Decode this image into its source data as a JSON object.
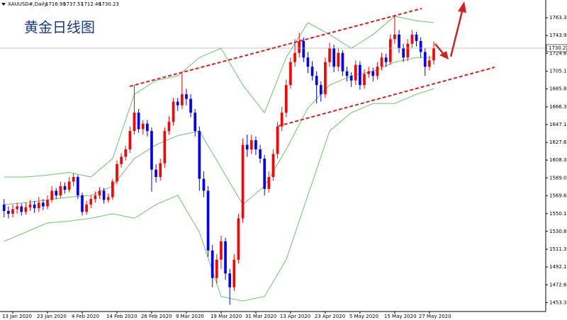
{
  "chart_data": {
    "type": "candlestick",
    "title": "黄金日线图",
    "symbol": "XAUUSD#,Daily",
    "header_ohlc": [
      "1716.90",
      "1737.51",
      "1712.46",
      "1730.23"
    ],
    "up_color": "#ff0000",
    "down_color": "#0000ff",
    "band_color": "#6cc46c",
    "xlim": [
      -0.94,
      124.8
    ],
    "ylim": [
      1443.6,
      1782.6
    ],
    "xticks": [
      {
        "value": 2,
        "label": "13 Jan 2020"
      },
      {
        "value": 10,
        "label": "23 Jan 2020"
      },
      {
        "value": 18,
        "label": "4 Feb 2020"
      },
      {
        "value": 26,
        "label": "14 Feb 2020"
      },
      {
        "value": 34,
        "label": "26 Feb 2020"
      },
      {
        "value": 42,
        "label": "9 Mar 2020"
      },
      {
        "value": 50,
        "label": "19 Mar 2020"
      },
      {
        "value": 58,
        "label": "31 Mar 2020"
      },
      {
        "value": 66,
        "label": "13 Apr 2020"
      },
      {
        "value": 74,
        "label": "23 Apr 2020"
      },
      {
        "value": 82,
        "label": "5 May 2020"
      },
      {
        "value": 90,
        "label": "15 May 2020"
      },
      {
        "value": 98,
        "label": "27 May 2020"
      }
    ],
    "yticks": [
      1763.35,
      1743.95,
      {
        "value": 1724.6,
        "label": "1724.60"
      },
      {
        "value": 1705.1,
        "label": "1705.10"
      },
      1685.85,
      1666.35,
      {
        "value": 1647.1,
        "label": "1647.10"
      },
      {
        "value": 1627.6,
        "label": "1627.60"
      },
      1608.35,
      {
        "value": 1589,
        "label": "1589.00"
      },
      {
        "value": 1569.6,
        "label": "1569.60"
      },
      {
        "value": 1550.1,
        "label": "1550.10"
      },
      1530.85,
      1511.35,
      {
        "value": 1492.1,
        "label": "1492.10"
      },
      {
        "value": 1472.6,
        "label": "1472.60"
      },
      1453.35
    ],
    "open": [
      1560,
      1553,
      1550,
      1555,
      1558,
      1552,
      1557,
      1560,
      1556,
      1562,
      1558,
      1565,
      1575,
      1570,
      1580,
      1576,
      1585,
      1590,
      1570,
      1552,
      1560,
      1566,
      1570,
      1575,
      1565,
      1568,
      1585,
      1604,
      1612,
      1620,
      1640,
      1660,
      1642,
      1648,
      1640,
      1598,
      1590,
      1605,
      1640,
      1650,
      1672,
      1668,
      1680,
      1675,
      1660,
      1640,
      1588,
      1575,
      1510,
      1480,
      1500,
      1520,
      1485,
      1470,
      1500,
      1545,
      1625,
      1620,
      1630,
      1620,
      1610,
      1577,
      1590,
      1615,
      1645,
      1660,
      1690,
      1715,
      1725,
      1738,
      1720,
      1710,
      1700,
      1690,
      1680,
      1715,
      1730,
      1710,
      1725,
      1705,
      1700,
      1695,
      1712,
      1690,
      1702,
      1705,
      1700,
      1710,
      1720,
      1715,
      1740,
      1745,
      1730,
      1720,
      1735,
      1745,
      1738,
      1726,
      1710,
      1716.9
    ],
    "high": [
      1566,
      1558,
      1560,
      1562,
      1561,
      1562,
      1565,
      1564,
      1568,
      1566,
      1570,
      1580,
      1578,
      1585,
      1584,
      1590,
      1594,
      1592,
      1573,
      1564,
      1570,
      1574,
      1579,
      1578,
      1572,
      1588,
      1608,
      1616,
      1624,
      1645,
      1690,
      1664,
      1652,
      1652,
      1644,
      1604,
      1610,
      1644,
      1656,
      1676,
      1676,
      1703,
      1686,
      1680,
      1664,
      1645,
      1596,
      1580,
      1516,
      1506,
      1526,
      1524,
      1490,
      1506,
      1550,
      1632,
      1636,
      1636,
      1634,
      1625,
      1614,
      1596,
      1620,
      1650,
      1666,
      1696,
      1720,
      1740,
      1747,
      1742,
      1726,
      1716,
      1705,
      1694,
      1720,
      1736,
      1734,
      1730,
      1728,
      1710,
      1704,
      1717,
      1716,
      1707,
      1710,
      1709,
      1715,
      1725,
      1724,
      1745,
      1765,
      1750,
      1735,
      1740,
      1750,
      1748,
      1742,
      1730,
      1722,
      1737.51
    ],
    "low": [
      1546,
      1545,
      1546,
      1550,
      1548,
      1549,
      1553,
      1551,
      1552,
      1554,
      1555,
      1562,
      1566,
      1567,
      1572,
      1573,
      1580,
      1566,
      1548,
      1549,
      1556,
      1562,
      1566,
      1561,
      1562,
      1565,
      1582,
      1600,
      1608,
      1616,
      1636,
      1638,
      1636,
      1634,
      1574,
      1584,
      1586,
      1600,
      1636,
      1646,
      1662,
      1664,
      1668,
      1655,
      1634,
      1575,
      1568,
      1503,
      1470,
      1474,
      1490,
      1478,
      1451,
      1466,
      1496,
      1540,
      1612,
      1615,
      1614,
      1605,
      1570,
      1573,
      1586,
      1610,
      1640,
      1655,
      1686,
      1710,
      1720,
      1715,
      1703,
      1695,
      1670,
      1672,
      1676,
      1710,
      1704,
      1705,
      1700,
      1694,
      1688,
      1690,
      1685,
      1686,
      1698,
      1694,
      1696,
      1706,
      1710,
      1712,
      1735,
      1725,
      1715,
      1716,
      1730,
      1732,
      1720,
      1700,
      1706,
      1712.46
    ],
    "close": [
      1553,
      1550,
      1555,
      1558,
      1552,
      1557,
      1560,
      1556,
      1562,
      1558,
      1565,
      1575,
      1570,
      1580,
      1576,
      1585,
      1590,
      1570,
      1552,
      1560,
      1566,
      1570,
      1575,
      1565,
      1568,
      1585,
      1604,
      1612,
      1620,
      1640,
      1660,
      1642,
      1648,
      1640,
      1598,
      1590,
      1605,
      1640,
      1650,
      1672,
      1668,
      1680,
      1675,
      1660,
      1640,
      1588,
      1575,
      1510,
      1480,
      1500,
      1520,
      1485,
      1470,
      1500,
      1545,
      1625,
      1620,
      1630,
      1620,
      1610,
      1577,
      1590,
      1615,
      1645,
      1660,
      1690,
      1715,
      1725,
      1738,
      1720,
      1710,
      1700,
      1690,
      1680,
      1715,
      1730,
      1710,
      1725,
      1705,
      1700,
      1695,
      1712,
      1690,
      1702,
      1705,
      1700,
      1710,
      1720,
      1715,
      1740,
      1745,
      1730,
      1720,
      1735,
      1745,
      1738,
      1726,
      1710,
      1716.9,
      1730.23
    ],
    "bands": [
      {
        "x": [
          0,
          5,
          10,
          15,
          20,
          25,
          30,
          35,
          40,
          45,
          50,
          55,
          60,
          65,
          70,
          75,
          80,
          85,
          90,
          95,
          99
        ],
        "values": [
          1590,
          1590,
          1592,
          1595,
          1590,
          1610,
          1680,
          1695,
          1700,
          1720,
          1730,
          1690,
          1660,
          1720,
          1758,
          1745,
          1730,
          1745,
          1765,
          1760,
          1758
        ]
      },
      {
        "x": [
          0,
          5,
          10,
          15,
          20,
          25,
          30,
          35,
          40,
          45,
          50,
          55,
          60,
          65,
          70,
          75,
          80,
          85,
          90,
          95,
          99
        ],
        "values": [
          1560,
          1562,
          1565,
          1568,
          1570,
          1580,
          1610,
          1625,
          1635,
          1640,
          1600,
          1560,
          1580,
          1620,
          1665,
          1690,
          1700,
          1705,
          1715,
          1720,
          1720
        ]
      },
      {
        "x": [
          0,
          5,
          10,
          15,
          20,
          25,
          30,
          35,
          40,
          45,
          50,
          55,
          60,
          65,
          70,
          75,
          80,
          85,
          90,
          95,
          99
        ],
        "values": [
          1520,
          1530,
          1540,
          1542,
          1545,
          1550,
          1545,
          1560,
          1570,
          1530,
          1460,
          1455,
          1460,
          1500,
          1570,
          1640,
          1660,
          1670,
          1670,
          1680,
          1686
        ]
      }
    ]
  }
}
